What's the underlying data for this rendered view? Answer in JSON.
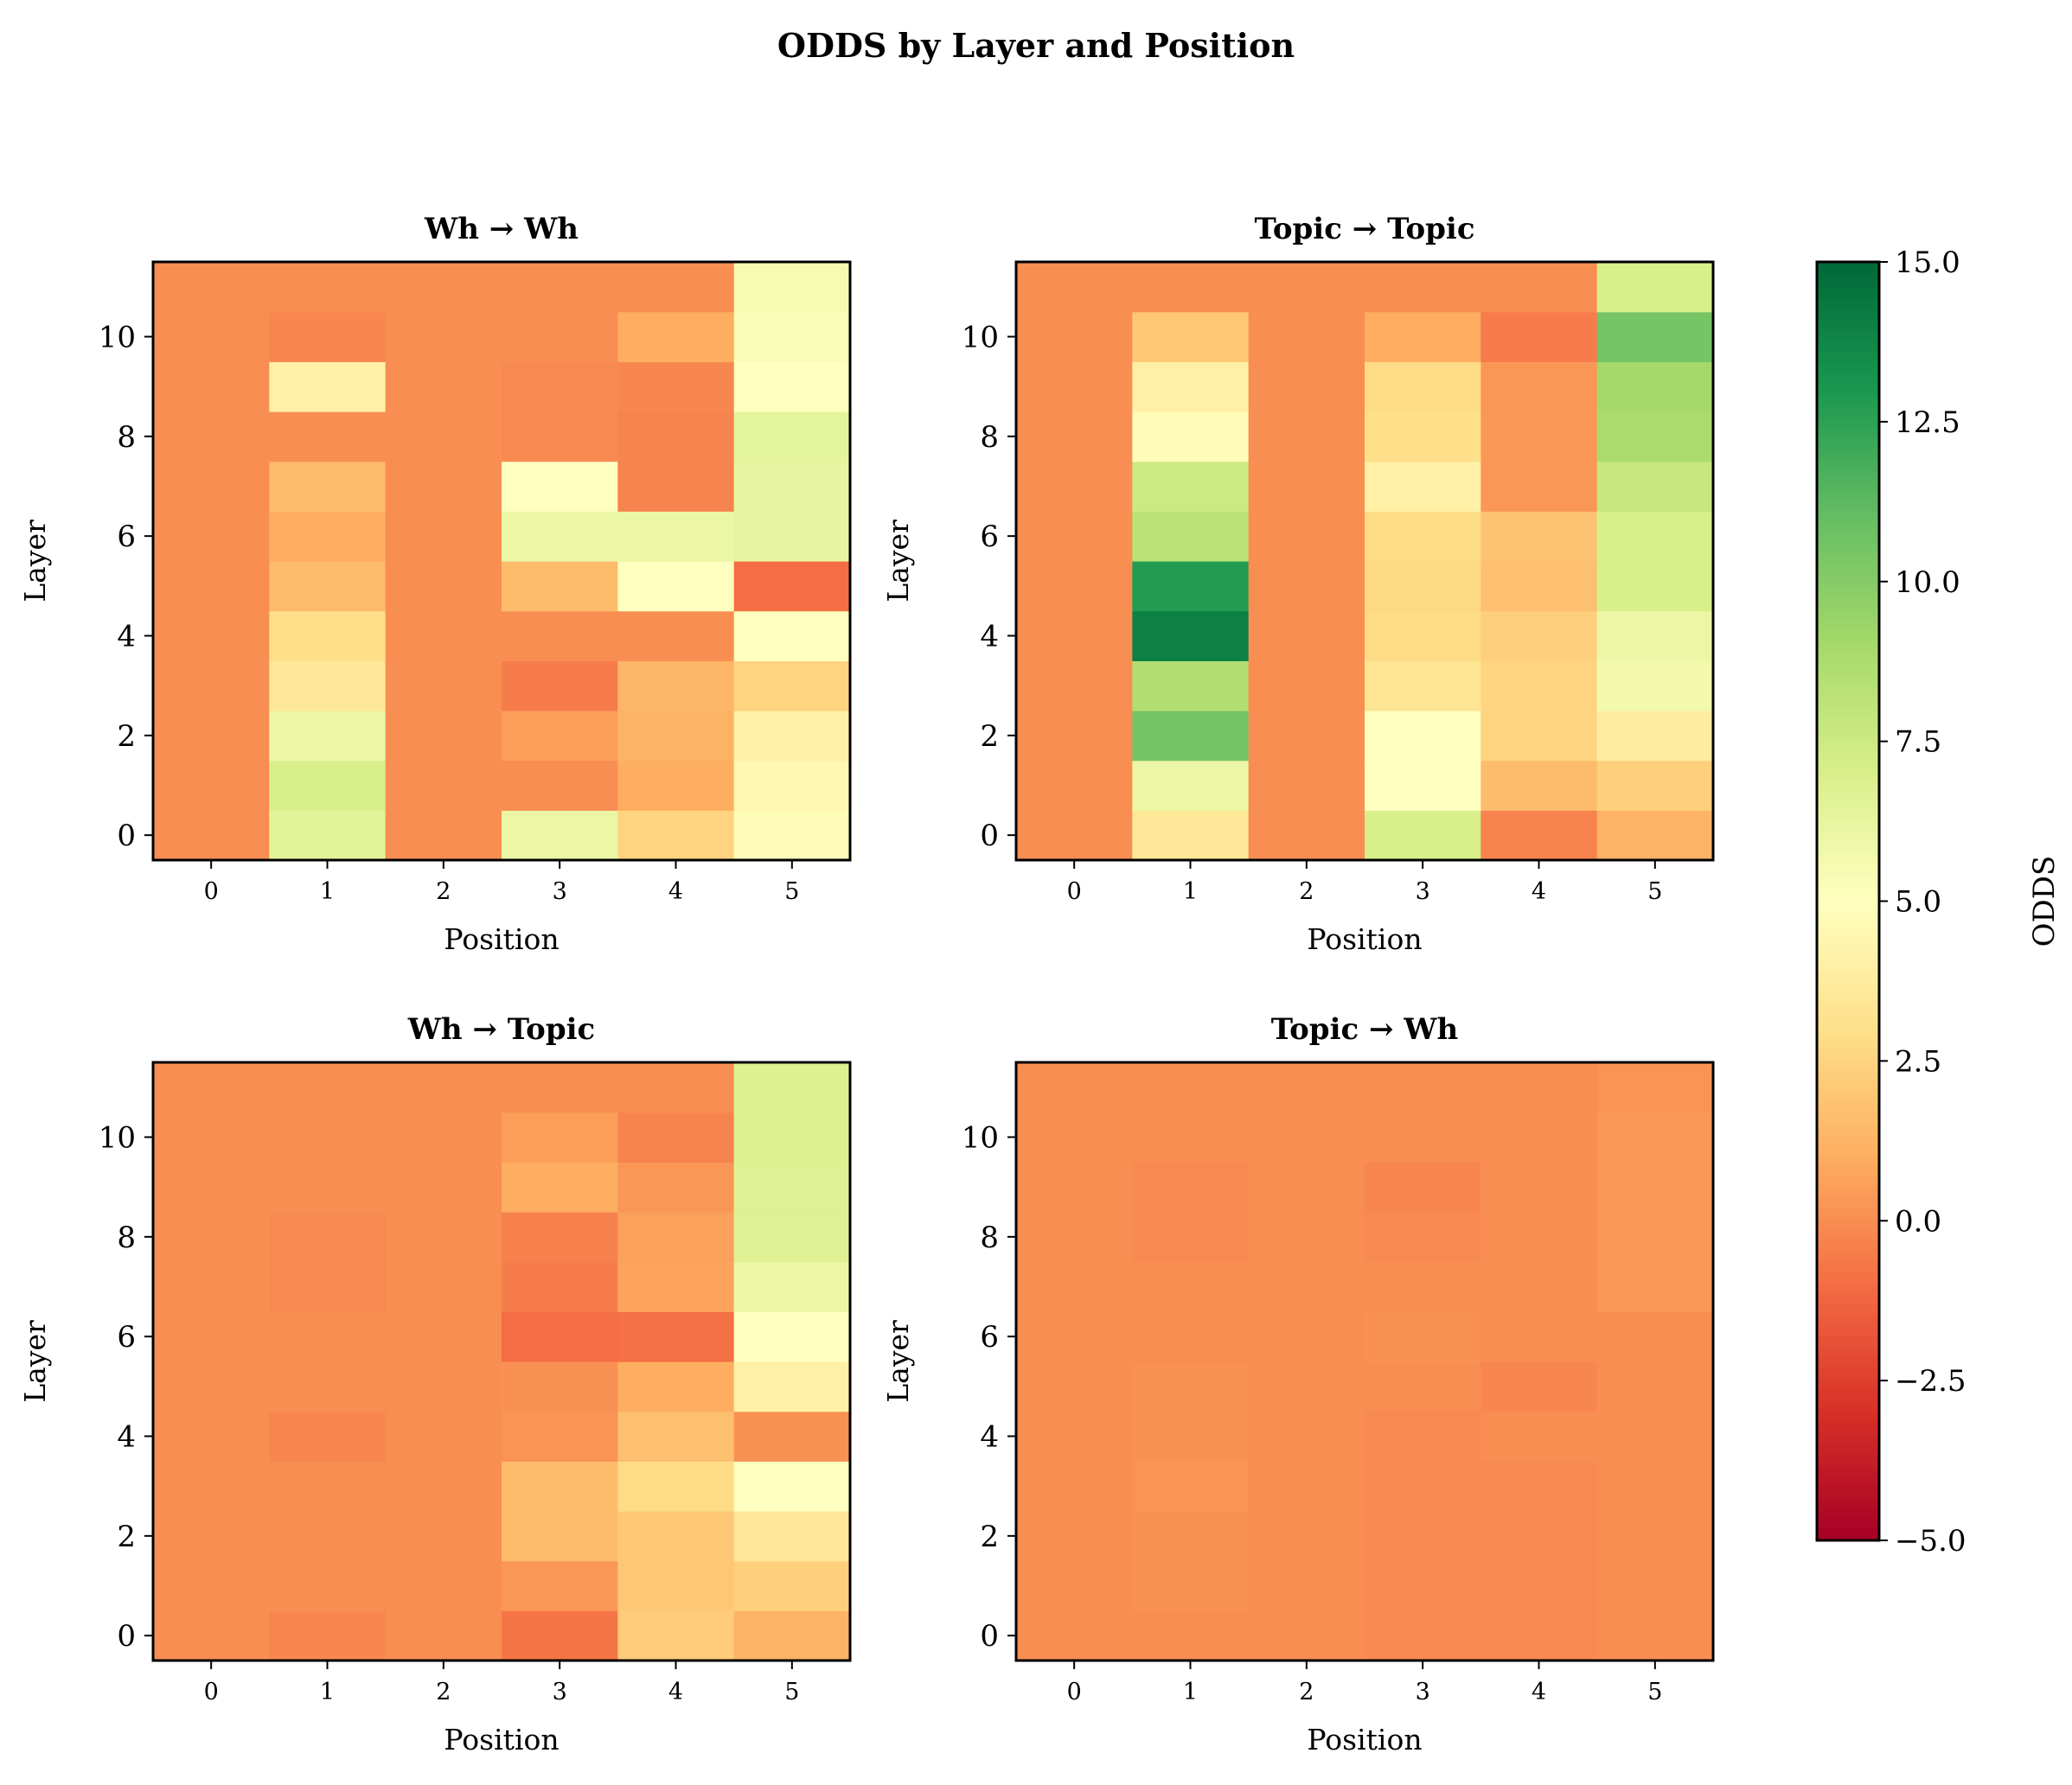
{
  "chart_data": {
    "type": "heatmap",
    "title": "ODDS by Layer and Position",
    "colorbar": {
      "label": "ODDS",
      "colormap": "RdYlGn",
      "range": [
        -5,
        15
      ],
      "ticks": [
        15,
        12.5,
        10,
        7.5,
        5,
        2.5,
        0,
        -2.5,
        -5
      ],
      "tick_labels": [
        "15.0",
        "12.5",
        "10.0",
        "7.5",
        "5.0",
        "2.5",
        "0.0",
        "−2.5",
        "−5.0"
      ]
    },
    "xlabel": "Position",
    "ylabel": "Layer",
    "x_ticks": [
      "0",
      "1",
      "2",
      "3",
      "4",
      "5"
    ],
    "y_ticks": [
      "0",
      "2",
      "4",
      "6",
      "8",
      "10"
    ],
    "panels": [
      {
        "title": "Wh → Wh",
        "values_by_position": [
          [
            0,
            0,
            0,
            0,
            0,
            0,
            0,
            0,
            0,
            0,
            0,
            0
          ],
          [
            6.5,
            7,
            6,
            3.5,
            3,
            1.5,
            1,
            1.5,
            0,
            4,
            -0.2,
            0
          ],
          [
            0,
            0,
            0,
            0,
            0,
            0,
            0,
            0,
            0,
            0,
            0,
            0
          ],
          [
            6,
            0,
            0.5,
            -0.5,
            0,
            1.5,
            6,
            5,
            -0.1,
            -0.1,
            0,
            0
          ],
          [
            2.5,
            1,
            1.2,
            1.3,
            0,
            5,
            6,
            -0.3,
            -0.3,
            -0.2,
            1,
            0
          ],
          [
            4.8,
            4.5,
            4,
            2.5,
            5,
            -1,
            6.2,
            6.2,
            6.4,
            5,
            5.3,
            5.5
          ]
        ]
      },
      {
        "title": "Topic → Topic",
        "values_by_position": [
          [
            0,
            0,
            0,
            0,
            0,
            0,
            0,
            0,
            0,
            0,
            0,
            0
          ],
          [
            3.5,
            6,
            10.5,
            8.5,
            14,
            12.8,
            8.2,
            7.5,
            4.8,
            4,
            2,
            0
          ],
          [
            0,
            0,
            0,
            0,
            0,
            0,
            0,
            0,
            0,
            0,
            0,
            0
          ],
          [
            7,
            5,
            5,
            3.3,
            2.8,
            2.7,
            2.8,
            4,
            3,
            2.8,
            1,
            0
          ],
          [
            -0.3,
            1.5,
            2.5,
            2.5,
            2.3,
            1.7,
            1.8,
            0.3,
            0.3,
            0.3,
            -0.5,
            0
          ],
          [
            1.2,
            2.3,
            3.8,
            5.7,
            6,
            7,
            7,
            7.7,
            8.8,
            9,
            10.5,
            7
          ]
        ]
      },
      {
        "title": "Wh → Topic",
        "values_by_position": [
          [
            0,
            0,
            0,
            0,
            0,
            0,
            0,
            0,
            0,
            0,
            0,
            0
          ],
          [
            -0.2,
            0,
            0,
            0,
            -0.2,
            0,
            0,
            -0.1,
            -0.1,
            0,
            0,
            0
          ],
          [
            0,
            0,
            0,
            0,
            0,
            0,
            0,
            0,
            0,
            0,
            0,
            0
          ],
          [
            -0.8,
            0.3,
            1.5,
            1.5,
            0.2,
            0.1,
            -1,
            -0.5,
            -0.4,
            1,
            0.5,
            0
          ],
          [
            2.2,
            2,
            2,
            2.8,
            1.7,
            1,
            -0.9,
            0.7,
            0.6,
            0.3,
            -0.3,
            0
          ],
          [
            1.2,
            2.3,
            3.5,
            5,
            0.1,
            4,
            5,
            6,
            6.7,
            6.7,
            6.8,
            6.8
          ]
        ]
      },
      {
        "title": "Topic → Wh",
        "values_by_position": [
          [
            0,
            0,
            0,
            0,
            0,
            0,
            0,
            0,
            0,
            0,
            0,
            0
          ],
          [
            0,
            0.1,
            0.1,
            0.2,
            0.1,
            0.1,
            0,
            0,
            -0.1,
            -0.1,
            0,
            0
          ],
          [
            0,
            0,
            0,
            0,
            0,
            0,
            0,
            0,
            0,
            0,
            0,
            0
          ],
          [
            -0.1,
            -0.1,
            -0.1,
            -0.1,
            -0.1,
            0,
            0.1,
            0,
            -0.1,
            -0.2,
            0,
            0
          ],
          [
            -0.1,
            -0.1,
            -0.1,
            -0.1,
            0,
            -0.2,
            0,
            0,
            0,
            0,
            0,
            0
          ],
          [
            0,
            0,
            0,
            0,
            0,
            0,
            0,
            0.3,
            0.3,
            0.3,
            0.3,
            0.2
          ]
        ]
      }
    ]
  }
}
